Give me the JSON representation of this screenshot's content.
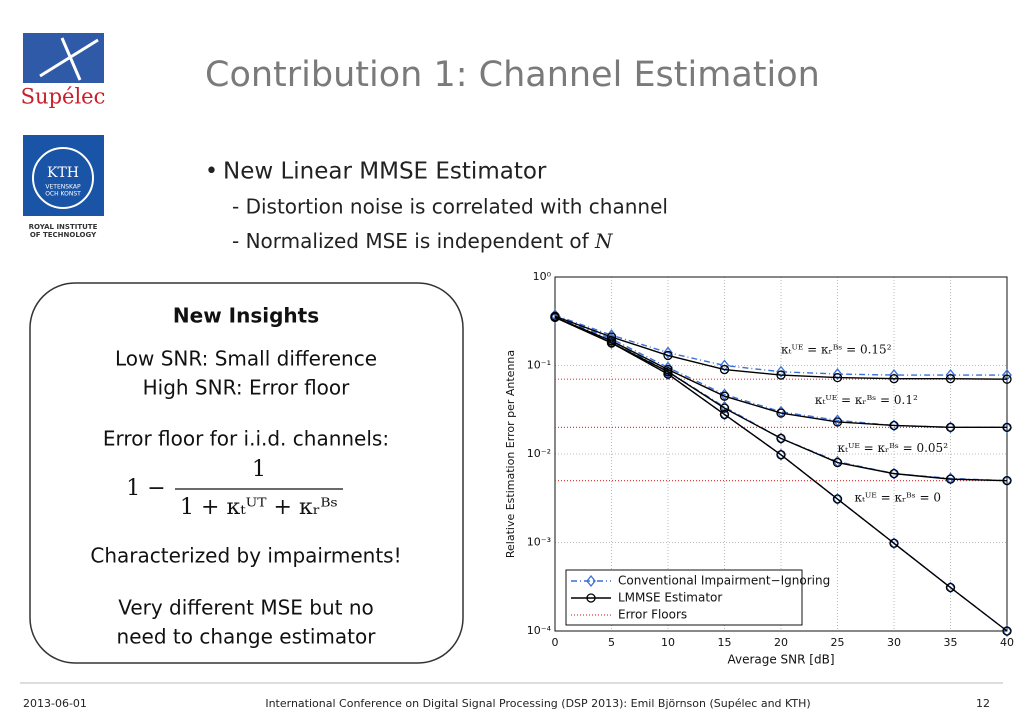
{
  "slide": {
    "title": "Contribution 1: Channel Estimation",
    "bullet": "New Linear MMSE Estimator",
    "subbullets": [
      "- Distortion noise is correlated with channel",
      "- Normalized MSE is independent of "
    ],
    "subbullet_symbol": "N",
    "box": {
      "heading": "New Insights",
      "lines": [
        "Low SNR: Small difference",
        "High SNR: Error floor",
        "Error floor for i.i.d. channels:"
      ],
      "formula": {
        "lead": "1 −",
        "numerator": "1",
        "denominator": "1 + κₜᵁᵀ + κᵣᴮˢ"
      },
      "closing": [
        "Characterized by impairments!",
        "Very different MSE but no",
        "need to change estimator"
      ]
    },
    "footer": {
      "date": "2013-06-01",
      "conference": "International Conference on Digital Signal Processing (DSP 2013): Emil Björnson (Supélec and KTH)",
      "page": "12"
    }
  },
  "logos": {
    "supelec": "Supélec",
    "kth": "KTH",
    "kth_motto": [
      "VETENSKAP",
      "OCH KONST"
    ],
    "kth_caption": [
      "ROYAL INSTITUTE",
      "OF TECHNOLOGY"
    ]
  },
  "chart_data": {
    "type": "line",
    "xlabel": "Average SNR [dB]",
    "ylabel": "Relative Estimation Error per Antenna",
    "x": [
      0,
      5,
      10,
      15,
      20,
      25,
      30,
      35,
      40
    ],
    "xlim": [
      0,
      40
    ],
    "xticks": [
      0,
      5,
      10,
      15,
      20,
      25,
      30,
      35,
      40
    ],
    "ylim": [
      0.0001,
      1
    ],
    "log_scale": true,
    "yticks": [
      {
        "value": 1,
        "label": "10⁰"
      },
      {
        "value": 0.1,
        "label": "10⁻¹"
      },
      {
        "value": 0.01,
        "label": "10⁻²"
      },
      {
        "value": 0.001,
        "label": "10⁻³"
      },
      {
        "value": 0.0001,
        "label": "10⁻⁴"
      }
    ],
    "grid": true,
    "legend": "bottom-left",
    "series": [
      {
        "name": "Conventional Impairment−Ignoring",
        "color": "#3a6fd8",
        "lines": [
          [
            0.37,
            0.22,
            0.14,
            0.1,
            0.085,
            0.08,
            0.078,
            0.078,
            0.078
          ],
          [
            0.36,
            0.2,
            0.095,
            0.047,
            0.03,
            0.024,
            0.021,
            0.02,
            0.02
          ],
          [
            0.36,
            0.19,
            0.085,
            0.034,
            0.015,
            0.0082,
            0.006,
            0.0053,
            0.005
          ],
          [
            0.35,
            0.18,
            0.08,
            0.028,
            0.0098,
            0.0031,
            0.00098,
            0.00031,
            0.0001
          ]
        ]
      },
      {
        "name": "LMMSE Estimator",
        "color": "#000000",
        "lines": [
          [
            0.36,
            0.21,
            0.13,
            0.09,
            0.078,
            0.073,
            0.071,
            0.071,
            0.07
          ],
          [
            0.35,
            0.19,
            0.09,
            0.045,
            0.029,
            0.023,
            0.021,
            0.02,
            0.02
          ],
          [
            0.35,
            0.18,
            0.085,
            0.033,
            0.015,
            0.008,
            0.006,
            0.0052,
            0.005
          ],
          [
            0.35,
            0.18,
            0.08,
            0.028,
            0.0098,
            0.0031,
            0.00098,
            0.00031,
            0.0001
          ]
        ]
      }
    ],
    "floors": {
      "name": "Error Floors",
      "color": "#e04040",
      "values": [
        0.07,
        0.02,
        0.005
      ]
    },
    "annotations": [
      {
        "text": "κₜᵁᴱ = κᵣᴮˢ = 0.15²",
        "x": 20,
        "y": 0.15
      },
      {
        "text": "κₜᵁᴱ = κᵣᴮˢ = 0.1²",
        "x": 23,
        "y": 0.04
      },
      {
        "text": "κₜᵁᴱ = κᵣᴮˢ = 0.05²",
        "x": 25,
        "y": 0.0115
      },
      {
        "text": "κₜᵁᴱ = κᵣᴮˢ = 0",
        "x": 26.5,
        "y": 0.0032
      }
    ]
  }
}
